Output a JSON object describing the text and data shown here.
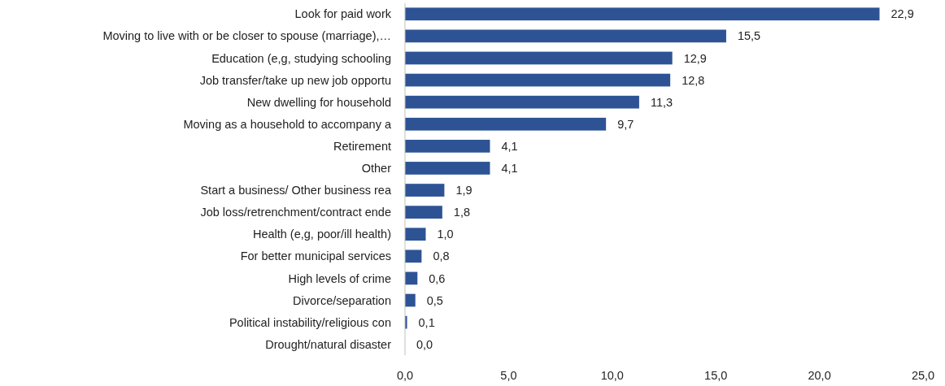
{
  "chart_data": {
    "type": "bar",
    "orientation": "horizontal",
    "categories": [
      "Look for paid work",
      "Moving to live with or be closer to spouse (marriage),…",
      "Education (e,g, studying schooling",
      "Job transfer/take up new job opportu",
      "New dwelling for household",
      "Moving as a household to accompany a",
      "Retirement",
      "Other",
      "Start a business/ Other business rea",
      "Job loss/retrenchment/contract ende",
      "Health (e,g, poor/ill health)",
      "For better municipal services",
      "High levels of crime",
      "Divorce/separation",
      "Political instability/religious con",
      "Drought/natural disaster"
    ],
    "values": [
      22.9,
      15.5,
      12.9,
      12.8,
      11.3,
      9.7,
      4.1,
      4.1,
      1.9,
      1.8,
      1.0,
      0.8,
      0.6,
      0.5,
      0.1,
      0.0
    ],
    "value_labels": [
      "22,9",
      "15,5",
      "12,9",
      "12,8",
      "11,3",
      "9,7",
      "4,1",
      "4,1",
      "1,9",
      "1,8",
      "1,0",
      "0,8",
      "0,6",
      "0,5",
      "0,1",
      "0,0"
    ],
    "color": "#2e5395",
    "xlim": [
      0,
      25
    ],
    "xticks": [
      {
        "value": 0,
        "label": "0,0"
      },
      {
        "value": 5,
        "label": "5,0"
      },
      {
        "value": 10,
        "label": "10,0"
      },
      {
        "value": 15,
        "label": "15,0"
      },
      {
        "value": 20,
        "label": "20,0"
      },
      {
        "value": 25,
        "label": "25,0"
      }
    ],
    "grid": false
  }
}
